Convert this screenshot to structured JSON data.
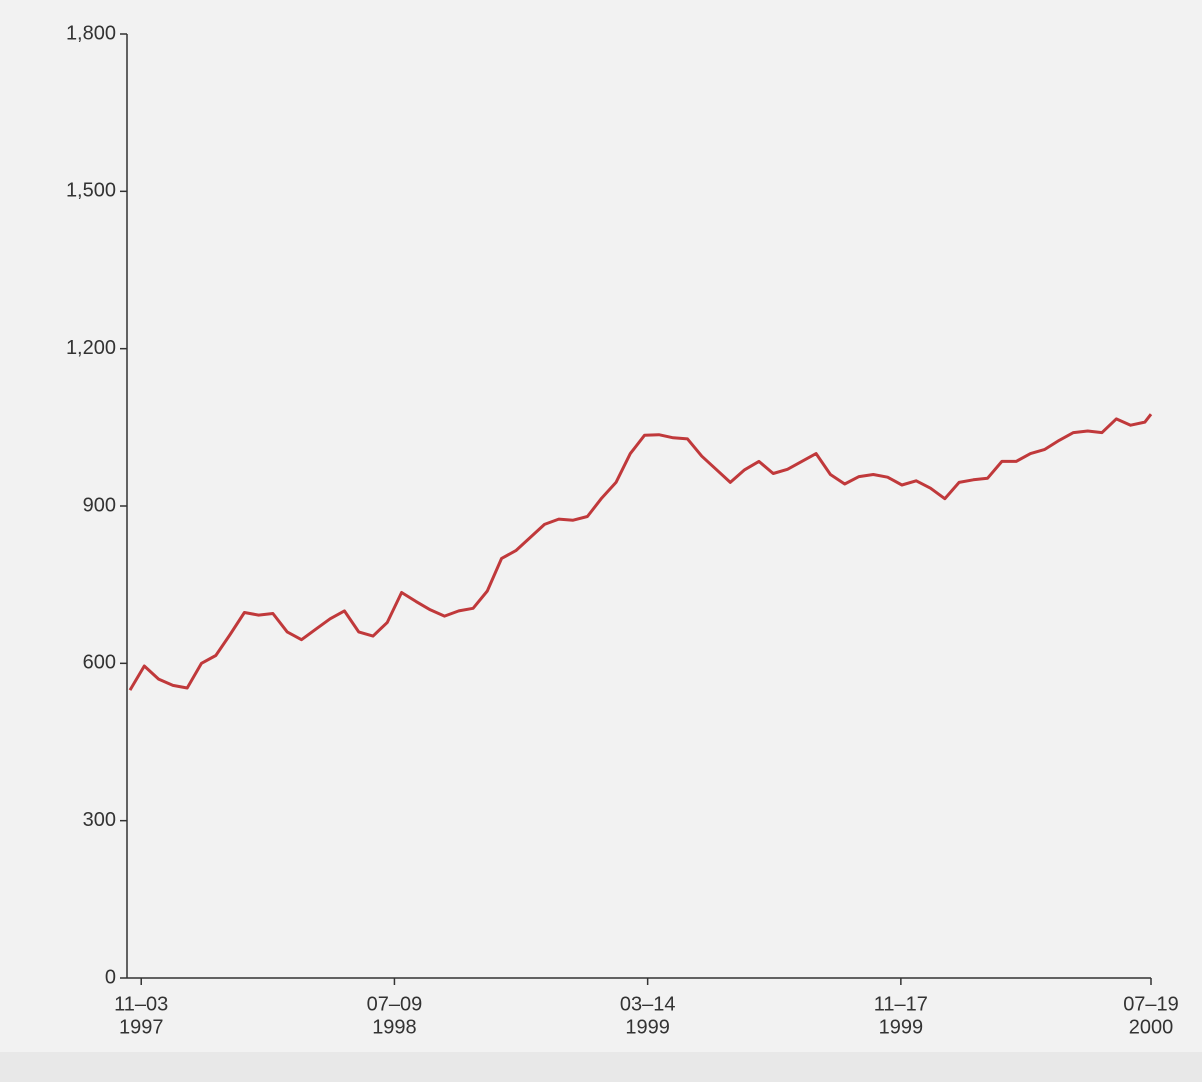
{
  "chart_data": {
    "type": "line",
    "x": [
      "1997-10-23",
      "1997-11-06",
      "1997-11-20",
      "1997-12-04",
      "1997-12-18",
      "1998-01-01",
      "1998-01-15",
      "1998-01-29",
      "1998-02-12",
      "1998-02-26",
      "1998-03-12",
      "1998-03-26",
      "1998-04-09",
      "1998-04-23",
      "1998-05-07",
      "1998-05-21",
      "1998-06-04",
      "1998-06-18",
      "1998-07-02",
      "1998-07-16",
      "1998-07-30",
      "1998-08-13",
      "1998-08-27",
      "1998-09-10",
      "1998-09-24",
      "1998-10-08",
      "1998-10-22",
      "1998-11-05",
      "1998-11-19",
      "1998-12-03",
      "1998-12-17",
      "1998-12-31",
      "1999-01-14",
      "1999-01-28",
      "1999-02-11",
      "1999-02-25",
      "1999-03-11",
      "1999-03-25",
      "1999-04-08",
      "1999-04-22",
      "1999-05-06",
      "1999-05-20",
      "1999-06-03",
      "1999-06-17",
      "1999-07-01",
      "1999-07-15",
      "1999-07-29",
      "1999-08-12",
      "1999-08-26",
      "1999-09-09",
      "1999-09-23",
      "1999-10-07",
      "1999-10-21",
      "1999-11-04",
      "1999-11-18",
      "1999-12-02",
      "1999-12-16",
      "1999-12-30",
      "2000-01-13",
      "2000-01-27",
      "2000-02-10",
      "2000-02-24",
      "2000-03-09",
      "2000-03-23",
      "2000-04-06",
      "2000-04-20",
      "2000-05-04",
      "2000-05-18",
      "2000-06-01",
      "2000-06-15",
      "2000-06-29",
      "2000-07-13",
      "2000-07-19"
    ],
    "series": [
      {
        "color": "#c0393b",
        "values": [
          549,
          595,
          570,
          558,
          553,
          600,
          615,
          655,
          697,
          692,
          695,
          660,
          645,
          665,
          685,
          700,
          660,
          652,
          678,
          735,
          718,
          702,
          690,
          700,
          705,
          738,
          800,
          815,
          840,
          865,
          875,
          873,
          880,
          915,
          945,
          1000,
          1035,
          1036,
          1030,
          1028,
          995,
          970,
          945,
          969,
          985,
          962,
          970,
          985,
          1000,
          960,
          942,
          956,
          960,
          955,
          940,
          948,
          934,
          914,
          945,
          950,
          953,
          985,
          985,
          1000,
          1008,
          1025,
          1040,
          1043,
          1040,
          1066,
          1054,
          1060,
          1075
        ]
      }
    ],
    "xlim": [
      "1997-10-23",
      "2000-07-19"
    ],
    "xticks": [
      {
        "value": "1997-11-03",
        "label": [
          "11–03",
          "1997"
        ]
      },
      {
        "value": "1998-07-09",
        "label": [
          "07–09",
          "1998"
        ]
      },
      {
        "value": "1999-03-14",
        "label": [
          "03–14",
          "1999"
        ]
      },
      {
        "value": "1999-11-17",
        "label": [
          "11–17",
          "1999"
        ]
      },
      {
        "value": "2000-07-19",
        "label": [
          "07–19",
          "2000"
        ]
      }
    ],
    "ylim": [
      0,
      1800
    ],
    "yticks": [
      0,
      300,
      600,
      900,
      {
        "value": 1200,
        "label": "1,200"
      },
      {
        "value": 1500,
        "label": "1,500"
      },
      {
        "value": 1800,
        "label": "1,800"
      }
    ]
  }
}
